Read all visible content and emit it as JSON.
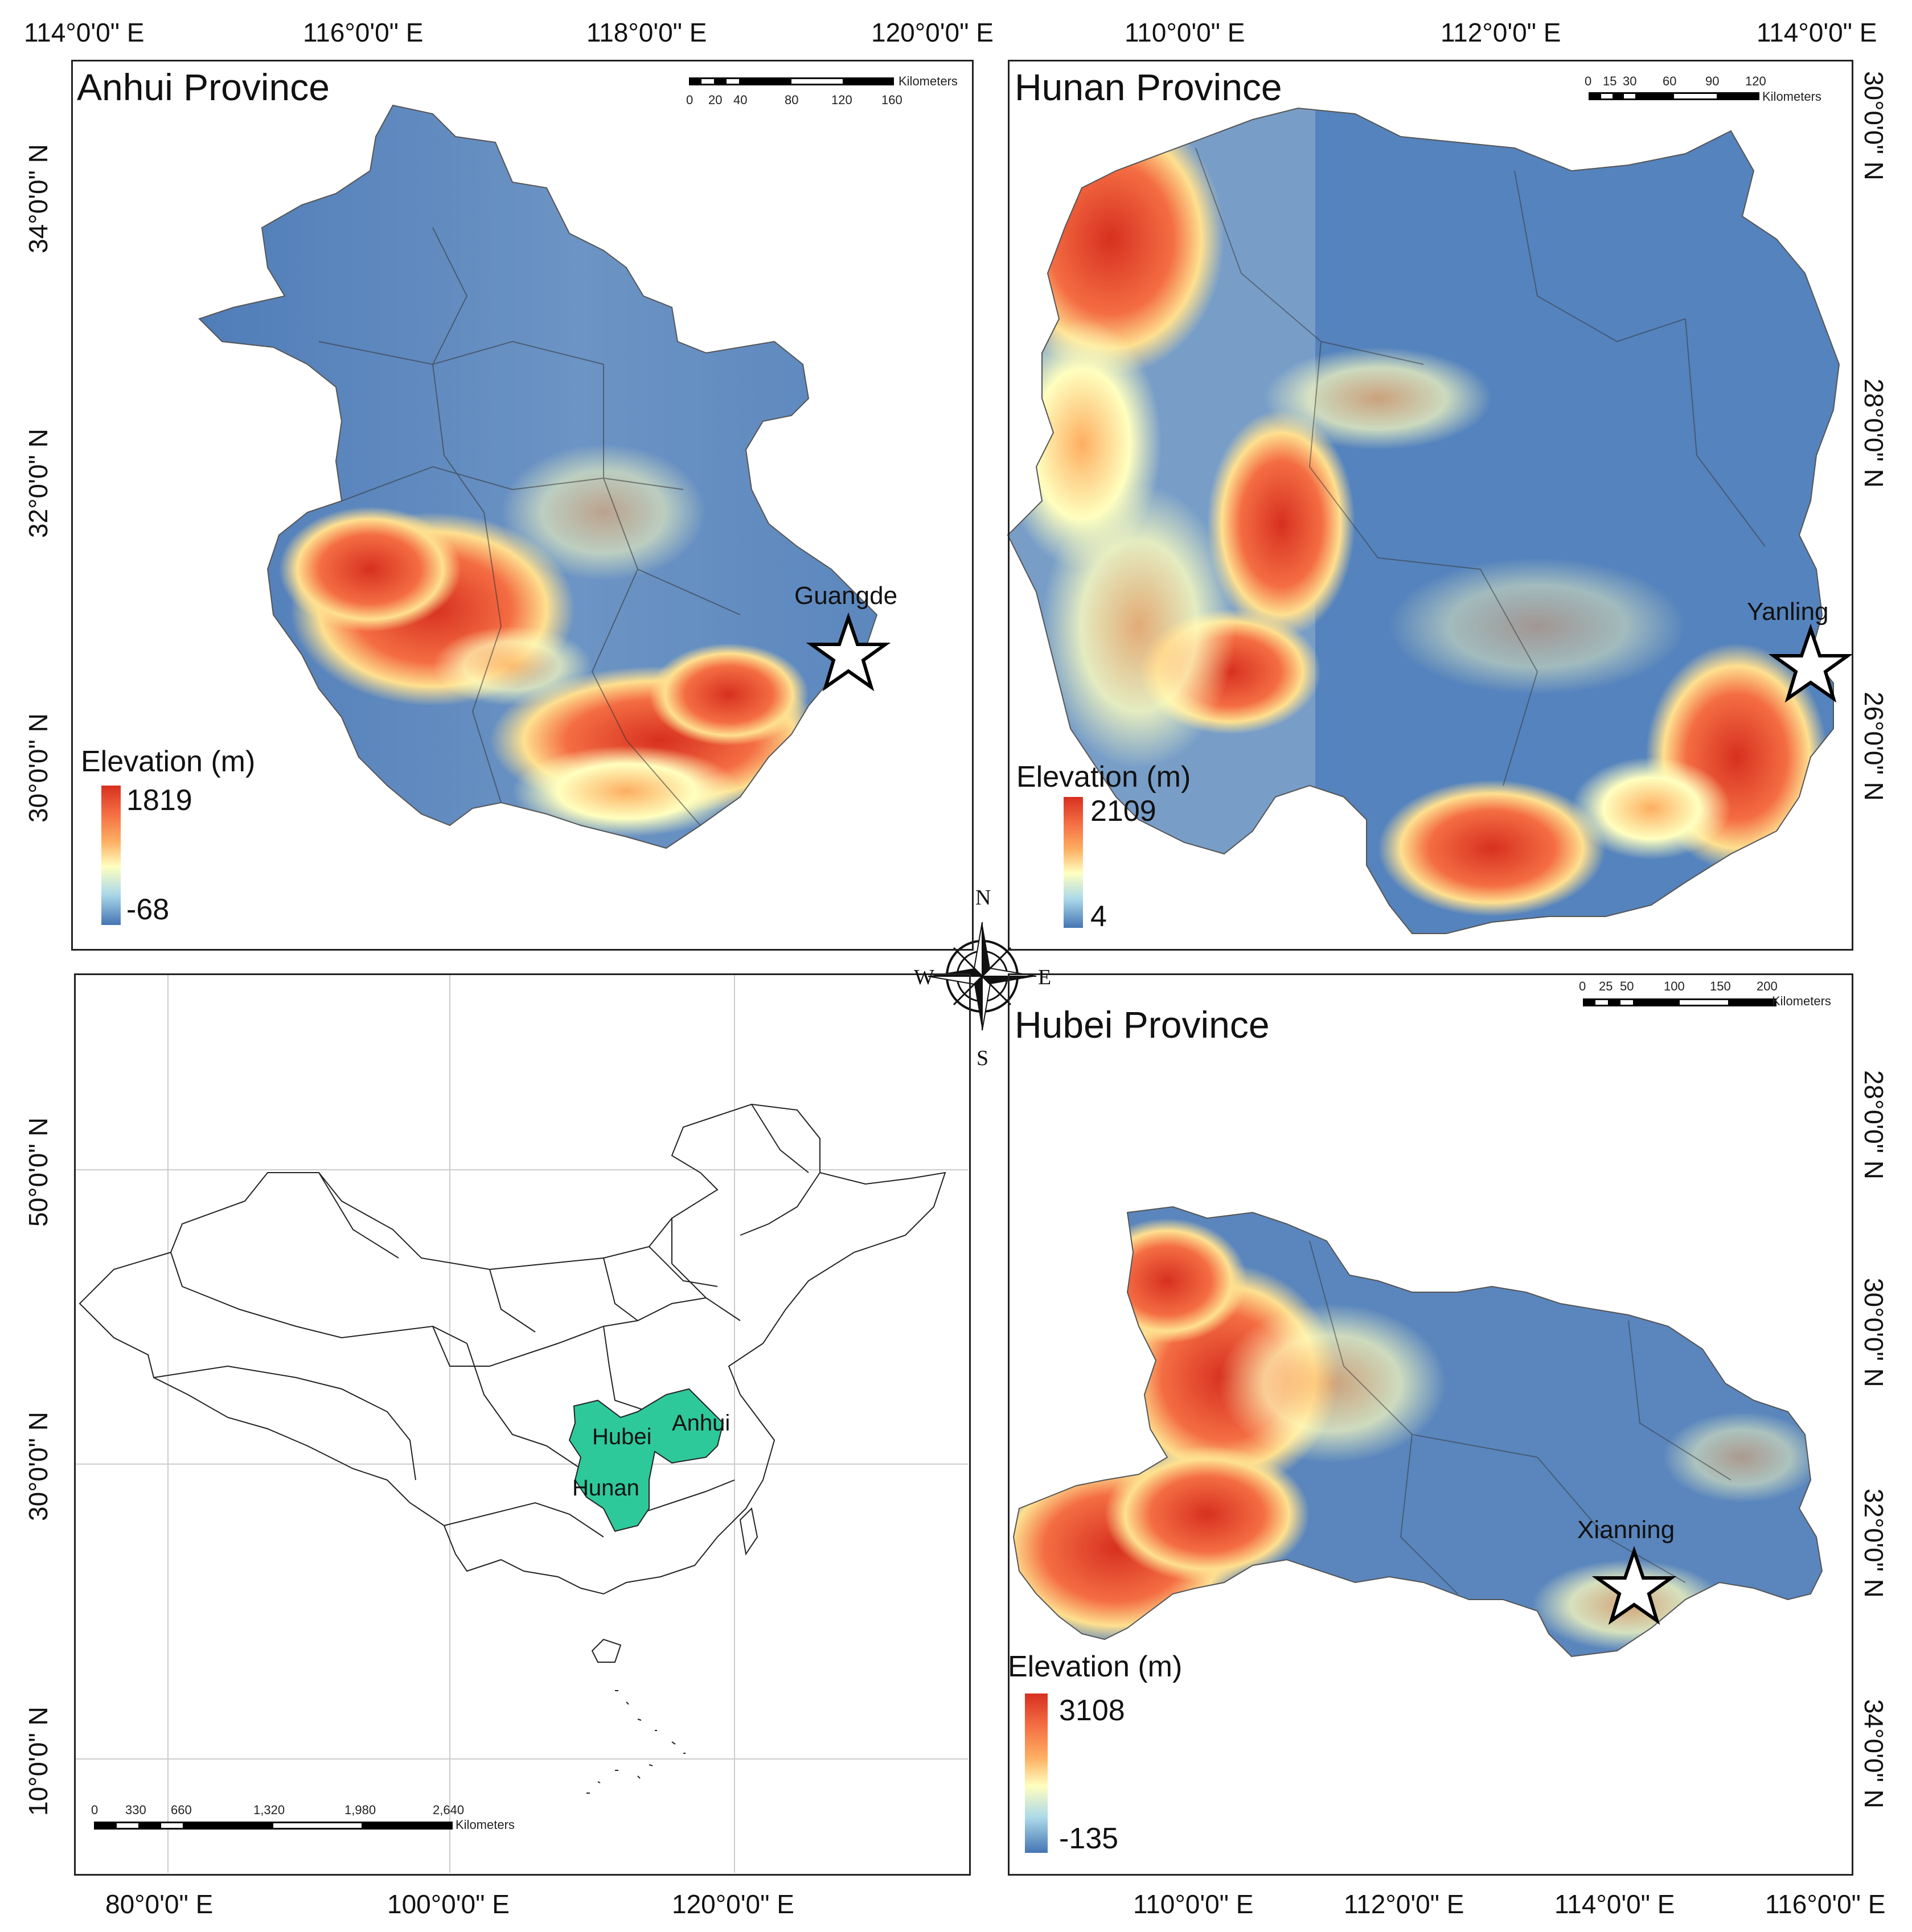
{
  "anhui": {
    "title": "Anhui Province",
    "top_lon": [
      "114°0'0\" E",
      "116°0'0\" E",
      "118°0'0\" E",
      "120°0'0\" E"
    ],
    "left_lat": [
      "34°0'0\" N",
      "32°0'0\" N",
      "30°0'0\" N"
    ],
    "legend": {
      "title": "Elevation (m)",
      "max": "1819",
      "min": "-68"
    },
    "scale": {
      "ticks": [
        "0",
        "20",
        "40",
        "80",
        "120",
        "160"
      ],
      "unit": "Kilometers"
    },
    "place": "Guangde"
  },
  "hunan": {
    "title": "Hunan Province",
    "top_lon": [
      "110°0'0\" E",
      "112°0'0\" E",
      "114°0'0\" E"
    ],
    "right_lat": [
      "30°0'0\" N",
      "28°0'0\" N",
      "26°0'0\" N"
    ],
    "legend": {
      "title": "Elevation (m)",
      "max": "2109",
      "min": "4"
    },
    "scale": {
      "ticks": [
        "0",
        "15",
        "30",
        "60",
        "90",
        "120"
      ],
      "unit": "Kilometers"
    },
    "place": "Yanling"
  },
  "china": {
    "left_lat": [
      "50°0'0\" N",
      "30°0'0\" N",
      "10°0'0\" N"
    ],
    "bottom_lon": [
      "80°0'0\" E",
      "100°0'0\" E",
      "120°0'0\" E"
    ],
    "labels": {
      "hubei": "Hubei",
      "anhui": "Anhui",
      "hunan": "Hunan"
    },
    "highlight_color": "#2ec99a",
    "scale": {
      "ticks": [
        "0",
        "330",
        "660",
        "1,320",
        "1,980",
        "2,640"
      ],
      "unit": "Kilometers"
    }
  },
  "hubei": {
    "title": "Hubei Province",
    "bottom_lon": [
      "110°0'0\" E",
      "112°0'0\" E",
      "114°0'0\" E",
      "116°0'0\" E"
    ],
    "right_lat": [
      "28°0'0\" N",
      "30°0'0\" N",
      "32°0'0\" N",
      "34°0'0\" N"
    ],
    "legend": {
      "title": "Elevation (m)",
      "max": "3108",
      "min": "-135"
    },
    "scale": {
      "ticks": [
        "0",
        "25",
        "50",
        "100",
        "150",
        "200"
      ],
      "unit": "Kilometers"
    },
    "place": "Xianning"
  },
  "compass": {
    "n": "N",
    "s": "S",
    "e": "E",
    "w": "W"
  },
  "colors": {
    "low": "#4a78b5",
    "mid": "#ffffbf",
    "high": "#d7301f",
    "frame": "#222222"
  }
}
